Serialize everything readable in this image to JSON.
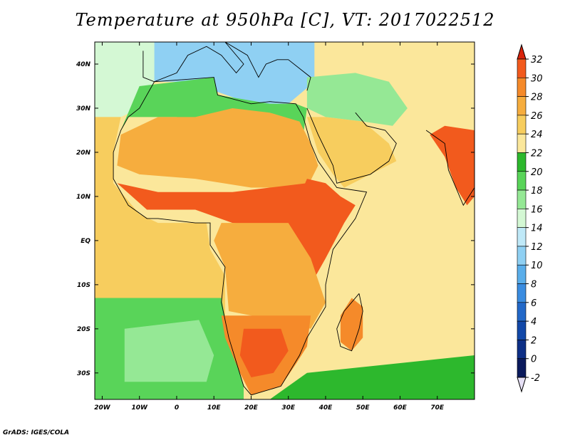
{
  "title": "Temperature at 950hPa [C], VT: 2017022512",
  "credit": "GrADS: IGES/COLA",
  "map": {
    "variable": "Temperature at 950hPa",
    "units": "C",
    "valid_time": "2017022512",
    "lon_range": [
      -22,
      80
    ],
    "lat_range": [
      -36,
      45
    ],
    "lat_ticks": [
      {
        "value": 40,
        "label": "40N"
      },
      {
        "value": 30,
        "label": "30N"
      },
      {
        "value": 20,
        "label": "20N"
      },
      {
        "value": 10,
        "label": "10N"
      },
      {
        "value": 0,
        "label": "EQ"
      },
      {
        "value": -10,
        "label": "10S"
      },
      {
        "value": -20,
        "label": "20S"
      },
      {
        "value": -30,
        "label": "30S"
      }
    ],
    "lon_ticks": [
      {
        "value": -20,
        "label": "20W"
      },
      {
        "value": -10,
        "label": "10W"
      },
      {
        "value": 0,
        "label": "0"
      },
      {
        "value": 10,
        "label": "10E"
      },
      {
        "value": 20,
        "label": "20E"
      },
      {
        "value": 30,
        "label": "30E"
      },
      {
        "value": 40,
        "label": "40E"
      },
      {
        "value": 50,
        "label": "50E"
      },
      {
        "value": 60,
        "label": "60E"
      },
      {
        "value": 70,
        "label": "70E"
      }
    ]
  },
  "colorbar": {
    "levels": [
      "32",
      "30",
      "28",
      "26",
      "24",
      "22",
      "20",
      "18",
      "16",
      "14",
      "12",
      "10",
      "8",
      "6",
      "4",
      "2",
      "0",
      "-2"
    ],
    "colors": [
      "#e8270f",
      "#f25a1d",
      "#f58a2a",
      "#f6ad3e",
      "#f7cd5e",
      "#fbe79b",
      "#2db82d",
      "#59d459",
      "#95e895",
      "#d4f8d4",
      "#bfe9f8",
      "#8fd0f3",
      "#5aaeea",
      "#3a8ce0",
      "#2268c8",
      "#1248a8",
      "#0d2f86",
      "#0a1a5c"
    ],
    "over_color": "#d9240c",
    "under_color": "#e6e0f5"
  },
  "regions": [
    {
      "name": "sea-north-atlantic",
      "level": 14,
      "points": [
        [
          -22,
          45
        ],
        [
          5,
          45
        ],
        [
          5,
          36
        ],
        [
          -6,
          36
        ],
        [
          -10,
          30
        ],
        [
          -15,
          28
        ],
        [
          -22,
          28
        ]
      ]
    },
    {
      "name": "sea-mediterranean",
      "level": 10,
      "points": [
        [
          -6,
          45
        ],
        [
          37,
          45
        ],
        [
          37,
          36
        ],
        [
          30,
          31
        ],
        [
          20,
          31
        ],
        [
          10,
          34
        ],
        [
          0,
          36
        ],
        [
          -6,
          36
        ]
      ]
    },
    {
      "name": "north-africa-coast",
      "level": 18,
      "points": [
        [
          -10,
          35
        ],
        [
          10,
          37
        ],
        [
          11,
          33
        ],
        [
          25,
          31
        ],
        [
          32,
          31
        ],
        [
          35,
          30
        ],
        [
          34,
          24
        ],
        [
          20,
          26
        ],
        [
          0,
          28
        ],
        [
          -8,
          28
        ],
        [
          -13,
          28
        ],
        [
          -15,
          25
        ]
      ]
    },
    {
      "name": "middle-east",
      "level": 16,
      "points": [
        [
          35,
          37
        ],
        [
          48,
          38
        ],
        [
          57,
          36
        ],
        [
          62,
          30
        ],
        [
          58,
          26
        ],
        [
          50,
          27
        ],
        [
          40,
          28
        ],
        [
          35,
          30
        ]
      ]
    },
    {
      "name": "sea-atlantic-tropics",
      "level": 24,
      "points": [
        [
          -22,
          28
        ],
        [
          -15,
          28
        ],
        [
          -17,
          20
        ],
        [
          -17,
          13
        ],
        [
          -10,
          6
        ],
        [
          -5,
          4
        ],
        [
          8,
          4
        ],
        [
          9,
          -2
        ],
        [
          13,
          -8
        ],
        [
          13,
          -17
        ],
        [
          -22,
          -17
        ]
      ]
    },
    {
      "name": "sea-south-atlantic",
      "level": 18,
      "points": [
        [
          -22,
          -13
        ],
        [
          12,
          -13
        ],
        [
          14,
          -22
        ],
        [
          18,
          -33
        ],
        [
          18,
          -36
        ],
        [
          -22,
          -36
        ]
      ]
    },
    {
      "name": "sea-south-atlantic-cool",
      "level": 16,
      "points": [
        [
          -14,
          -20
        ],
        [
          6,
          -18
        ],
        [
          10,
          -26
        ],
        [
          8,
          -32
        ],
        [
          -14,
          -32
        ]
      ]
    },
    {
      "name": "sea-indian-ocean",
      "level": 22,
      "points": [
        [
          43,
          12
        ],
        [
          51,
          11
        ],
        [
          57,
          18
        ],
        [
          66,
          24
        ],
        [
          80,
          22
        ],
        [
          80,
          -36
        ],
        [
          20,
          -36
        ],
        [
          28,
          -33
        ],
        [
          33,
          -26
        ],
        [
          35,
          -22
        ],
        [
          40,
          -15
        ],
        [
          40,
          -10
        ],
        [
          42,
          -2
        ],
        [
          46,
          2
        ],
        [
          51,
          11
        ]
      ]
    },
    {
      "name": "sea-indian-south",
      "level": 20,
      "points": [
        [
          35,
          -30
        ],
        [
          80,
          -26
        ],
        [
          80,
          -36
        ],
        [
          25,
          -36
        ]
      ]
    },
    {
      "name": "sahara-hot",
      "level": 26,
      "points": [
        [
          -15,
          24
        ],
        [
          -5,
          28
        ],
        [
          5,
          28
        ],
        [
          15,
          30
        ],
        [
          25,
          29
        ],
        [
          33,
          27
        ],
        [
          36,
          22
        ],
        [
          38,
          17
        ],
        [
          35,
          12
        ],
        [
          20,
          12
        ],
        [
          5,
          14
        ],
        [
          -10,
          15
        ],
        [
          -16,
          17
        ]
      ]
    },
    {
      "name": "sahel-hot",
      "level": 30,
      "points": [
        [
          -16,
          13
        ],
        [
          -5,
          11
        ],
        [
          5,
          11
        ],
        [
          15,
          11
        ],
        [
          25,
          12
        ],
        [
          35,
          13
        ],
        [
          38,
          8
        ],
        [
          30,
          3
        ],
        [
          15,
          4
        ],
        [
          5,
          7
        ],
        [
          -8,
          7
        ]
      ]
    },
    {
      "name": "east-africa-hot",
      "level": 30,
      "points": [
        [
          35,
          14
        ],
        [
          40,
          13
        ],
        [
          44,
          10
        ],
        [
          48,
          8
        ],
        [
          45,
          4
        ],
        [
          40,
          -4
        ],
        [
          36,
          -10
        ],
        [
          30,
          -8
        ],
        [
          26,
          0
        ],
        [
          28,
          6
        ],
        [
          33,
          10
        ]
      ]
    },
    {
      "name": "central-africa-warm",
      "level": 26,
      "points": [
        [
          12,
          4
        ],
        [
          30,
          4
        ],
        [
          36,
          -4
        ],
        [
          40,
          -14
        ],
        [
          36,
          -20
        ],
        [
          26,
          -18
        ],
        [
          14,
          -16
        ],
        [
          13,
          -6
        ],
        [
          10,
          0
        ]
      ]
    },
    {
      "name": "southern-africa-hot",
      "level": 28,
      "points": [
        [
          12,
          -17
        ],
        [
          36,
          -17
        ],
        [
          35,
          -24
        ],
        [
          32,
          -28
        ],
        [
          28,
          -33
        ],
        [
          20,
          -35
        ],
        [
          17,
          -30
        ],
        [
          13,
          -22
        ]
      ]
    },
    {
      "name": "kalahari-hot",
      "level": 30,
      "points": [
        [
          18,
          -20
        ],
        [
          28,
          -20
        ],
        [
          30,
          -25
        ],
        [
          26,
          -30
        ],
        [
          20,
          -31
        ],
        [
          17,
          -26
        ]
      ]
    },
    {
      "name": "arabia-warm",
      "level": 24,
      "points": [
        [
          35,
          28
        ],
        [
          40,
          28
        ],
        [
          50,
          27
        ],
        [
          57,
          22
        ],
        [
          59,
          18
        ],
        [
          52,
          15
        ],
        [
          45,
          12
        ],
        [
          42,
          15
        ],
        [
          38,
          20
        ]
      ]
    },
    {
      "name": "india-hot",
      "level": 30,
      "points": [
        [
          68,
          24
        ],
        [
          72,
          26
        ],
        [
          80,
          25
        ],
        [
          80,
          10
        ],
        [
          78,
          8
        ],
        [
          75,
          12
        ],
        [
          72,
          19
        ]
      ]
    },
    {
      "name": "madagascar",
      "level": 28,
      "points": [
        [
          47,
          -13
        ],
        [
          50,
          -15
        ],
        [
          50,
          -22
        ],
        [
          47,
          -25
        ],
        [
          44,
          -23
        ],
        [
          44,
          -17
        ]
      ]
    }
  ]
}
